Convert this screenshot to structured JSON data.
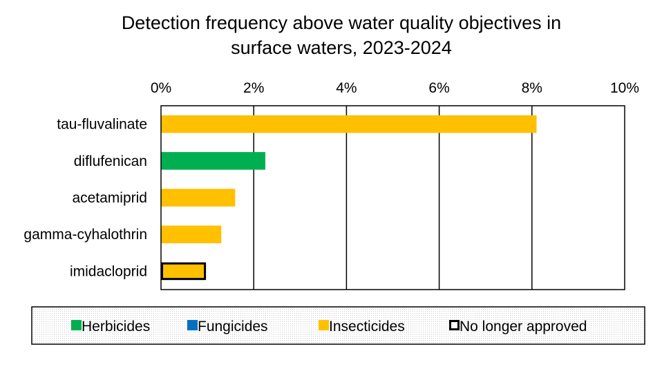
{
  "chart_data": {
    "type": "bar",
    "orientation": "horizontal",
    "title_lines": [
      "Detection frequency above water quality objectives in",
      "surface waters, 2023-2024"
    ],
    "x_ticks": [
      "0%",
      "2%",
      "4%",
      "6%",
      "8%",
      "10%"
    ],
    "xlim": [
      0,
      10
    ],
    "x_tick_values": [
      0,
      2,
      4,
      6,
      8,
      10
    ],
    "grid": "vertical",
    "categories": [
      "tau-fluvalinate",
      "diflufenican",
      "acetamiprid",
      "gamma-cyhalothrin",
      "imidacloprid"
    ],
    "values": [
      8.1,
      2.25,
      1.6,
      1.3,
      0.97
    ],
    "bar_groups": [
      "Insecticides",
      "Herbicides",
      "Insecticides",
      "Insecticides",
      "Insecticides"
    ],
    "no_longer_approved": [
      false,
      false,
      false,
      false,
      true
    ],
    "legend_position": "bottom",
    "legend": [
      {
        "label": "Herbicides",
        "color": "#00b050",
        "style": "fill"
      },
      {
        "label": "Fungicides",
        "color": "#0070c0",
        "style": "fill"
      },
      {
        "label": "Insecticides",
        "color": "#ffc000",
        "style": "fill"
      },
      {
        "label": "No longer approved",
        "color": "#000000",
        "style": "outline"
      }
    ],
    "group_colors": {
      "Herbicides": "#00b050",
      "Fungicides": "#0070c0",
      "Insecticides": "#ffc000"
    }
  }
}
